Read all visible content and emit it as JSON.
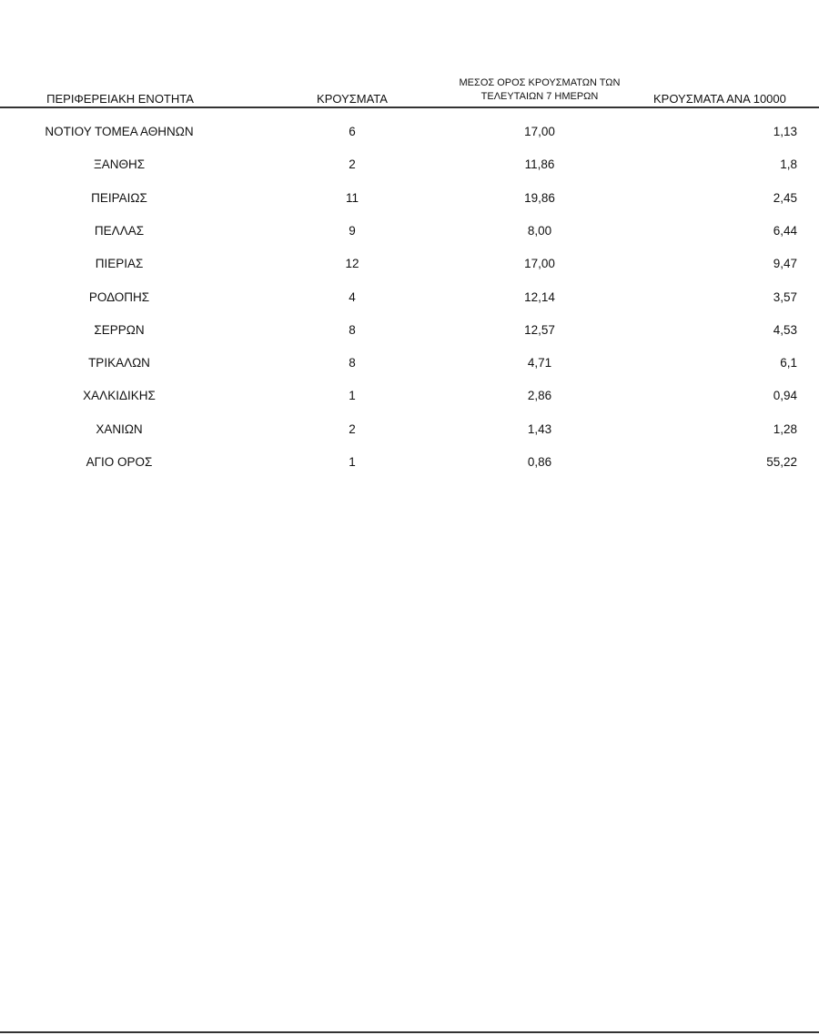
{
  "table": {
    "headers": {
      "region": "ΠΕΡΙΦΕΡΕΙΑΚΗ ΕΝΟΤΗΤΑ",
      "cases": "ΚΡΟΥΣΜΑΤΑ",
      "avg_line1": "ΜΕΣΟΣ ΟΡΟΣ ΚΡΟΥΣΜΑΤΩΝ ΤΩΝ",
      "avg_line2": "ΤΕΛΕΥΤΑΙΩΝ 7 ΗΜΕΡΩΝ",
      "per10000": "ΚΡΟΥΣΜΑΤΑ ΑΝΑ 10000"
    },
    "rows": [
      {
        "region": "ΝΟΤΙΟΥ ΤΟΜΕΑ ΑΘΗΝΩΝ",
        "cases": "6",
        "avg": "17,00",
        "per10000": "1,13"
      },
      {
        "region": "ΞΑΝΘΗΣ",
        "cases": "2",
        "avg": "11,86",
        "per10000": "1,8"
      },
      {
        "region": "ΠΕΙΡΑΙΩΣ",
        "cases": "11",
        "avg": "19,86",
        "per10000": "2,45"
      },
      {
        "region": "ΠΕΛΛΑΣ",
        "cases": "9",
        "avg": "8,00",
        "per10000": "6,44"
      },
      {
        "region": "ΠΙΕΡΙΑΣ",
        "cases": "12",
        "avg": "17,00",
        "per10000": "9,47"
      },
      {
        "region": "ΡΟΔΟΠΗΣ",
        "cases": "4",
        "avg": "12,14",
        "per10000": "3,57"
      },
      {
        "region": "ΣΕΡΡΩΝ",
        "cases": "8",
        "avg": "12,57",
        "per10000": "4,53"
      },
      {
        "region": "ΤΡΙΚΑΛΩΝ",
        "cases": "8",
        "avg": "4,71",
        "per10000": "6,1"
      },
      {
        "region": "ΧΑΛΚΙΔΙΚΗΣ",
        "cases": "1",
        "avg": "2,86",
        "per10000": "0,94"
      },
      {
        "region": "ΧΑΝΙΩΝ",
        "cases": "2",
        "avg": "1,43",
        "per10000": "1,28"
      },
      {
        "region": "ΑΓΙΟ ΟΡΟΣ",
        "cases": "1",
        "avg": "0,86",
        "per10000": "55,22"
      }
    ]
  }
}
